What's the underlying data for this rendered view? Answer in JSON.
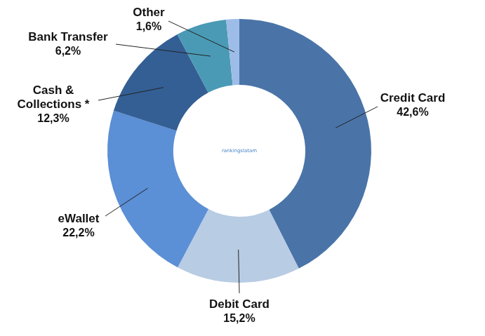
{
  "chart_data": {
    "type": "doughnut",
    "annotation": "rankingslatam",
    "categories": [
      "Credit Card",
      "Debit Card",
      "eWallet",
      [
        "Cash &",
        "Collections *"
      ],
      "Bank Transfer",
      "Other"
    ],
    "values": [
      42.6,
      15.2,
      22.2,
      12.3,
      6.2,
      1.6
    ],
    "value_labels": [
      "42,6%",
      "15,2%",
      "22,2%",
      "12,3%",
      "6,2%",
      "1,6%"
    ],
    "colors": [
      "#4a74a8",
      "#b8cce4",
      "#5b8fd6",
      "#345f94",
      "#4a9ab5",
      "#9dbde8"
    ],
    "data_labels": true
  }
}
